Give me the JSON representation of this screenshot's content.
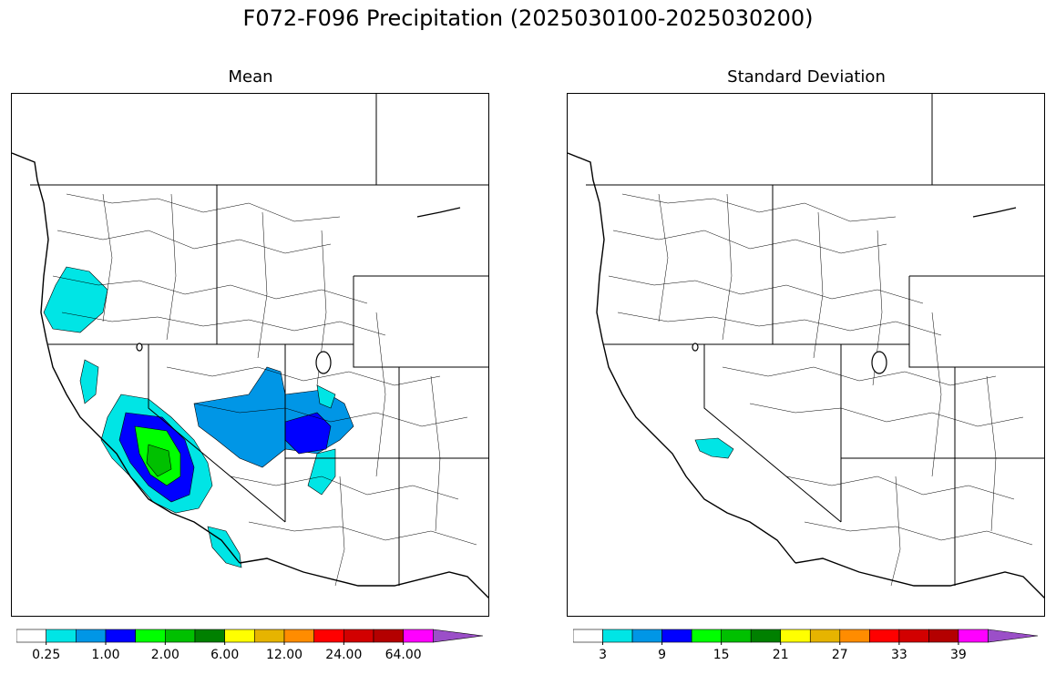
{
  "title": "F072-F096 Precipitation (2025030100-2025030200)",
  "panels": [
    {
      "title": "Mean",
      "colorbar": {
        "labels": [
          "0.25",
          "1.00",
          "2.00",
          "6.00",
          "12.00",
          "24.00",
          "64.00"
        ],
        "colors": [
          "#ffffff",
          "#00e5e5",
          "#0096e6",
          "#0000ff",
          "#00ff00",
          "#00c000",
          "#008000",
          "#ffff00",
          "#e6b400",
          "#ff8c00",
          "#ff0000",
          "#d20000",
          "#b40000",
          "#ff00ff",
          "#9b4fc8"
        ]
      }
    },
    {
      "title": "Standard Deviation",
      "colorbar": {
        "labels": [
          "3",
          "9",
          "15",
          "21",
          "27",
          "33",
          "39"
        ],
        "colors": [
          "#ffffff",
          "#00e5e5",
          "#0096e6",
          "#0000ff",
          "#00ff00",
          "#00c000",
          "#008000",
          "#ffff00",
          "#e6b400",
          "#ff8c00",
          "#ff0000",
          "#d20000",
          "#b40000",
          "#ff00ff",
          "#9b4fc8"
        ]
      }
    }
  ]
}
